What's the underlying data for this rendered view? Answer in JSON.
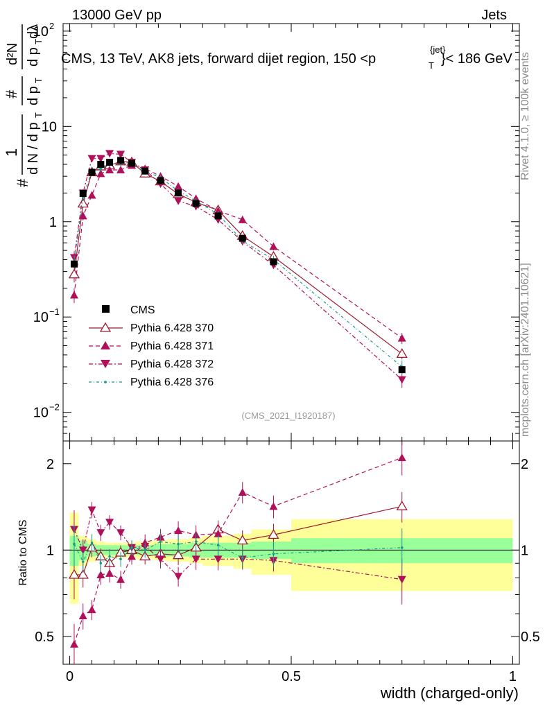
{
  "header": {
    "left": "13000 GeV pp",
    "right": "Jets"
  },
  "side": {
    "version": "Rivet 4.1.0, ≥ 100k events",
    "source": "mcplots.cern.ch [arXiv:2401.10621]"
  },
  "chart_data": {
    "type": "line",
    "title": "CMS, 13 TeV, AK8 jets, forward dijet region, 150 <",
    "title_p": "p",
    "title_sup": "{jet}",
    "title_sub": "T",
    "title_end": "}< 186 GeV",
    "analysis_label": "(CMS_2021_I1920187)",
    "xlabel": "width (charged-only)",
    "ylabel_ratio": "Ratio to CMS",
    "ylabel_main": {
      "hash": "#",
      "one": "1",
      "dN": "d N / d p",
      "dN_sub": "T",
      "hash2": "#",
      "dp": "d p",
      "dp_sub": "T",
      "d2N": "d²N",
      "dlambda": "dλ"
    },
    "xlim": [
      -0.015,
      1.015
    ],
    "ylim_main": [
      0.005,
      120
    ],
    "ylim_ratio": [
      0.4,
      2.4
    ],
    "x_ticks": [
      {
        "v": 0,
        "label": "0"
      },
      {
        "v": 0.5,
        "label": "0.5"
      },
      {
        "v": 1,
        "label": "1"
      }
    ],
    "y_ticks_main": [
      {
        "v": 0.01,
        "b": "10",
        "e": "−2"
      },
      {
        "v": 0.1,
        "b": "10",
        "e": "−1"
      },
      {
        "v": 1,
        "b": "1",
        "e": ""
      },
      {
        "v": 10,
        "b": "10",
        "e": ""
      },
      {
        "v": 100,
        "b": "10",
        "e": "2"
      }
    ],
    "y_ticks_ratio": [
      {
        "v": 0.5,
        "label": "0.5"
      },
      {
        "v": 1,
        "label": "1"
      },
      {
        "v": 2,
        "label": "2"
      }
    ],
    "x": [
      0.01,
      0.03,
      0.05,
      0.07,
      0.09,
      0.115,
      0.14,
      0.17,
      0.205,
      0.245,
      0.285,
      0.335,
      0.39,
      0.46,
      0.75
    ],
    "bin_edges": [
      0,
      0.02,
      0.04,
      0.06,
      0.08,
      0.1,
      0.13,
      0.15,
      0.19,
      0.22,
      0.27,
      0.3,
      0.37,
      0.41,
      0.5,
      1.0
    ],
    "band_inner": [
      0.12,
      0.08,
      0.05,
      0.04,
      0.04,
      0.04,
      0.04,
      0.04,
      0.05,
      0.05,
      0.06,
      0.06,
      0.06,
      0.07,
      0.1
    ],
    "band_outer": [
      0.35,
      0.12,
      0.09,
      0.07,
      0.06,
      0.06,
      0.06,
      0.07,
      0.08,
      0.09,
      0.1,
      0.12,
      0.14,
      0.18,
      0.28
    ],
    "cms": {
      "name": "CMS",
      "values": [
        0.36,
        1.98,
        3.3,
        4.0,
        4.2,
        4.4,
        4.1,
        3.4,
        2.7,
        2.0,
        1.55,
        1.15,
        0.67,
        0.38,
        0.028
      ],
      "color": "#000000"
    },
    "series": [
      {
        "name": "Pythia 6.428 370",
        "color": "#9b1b30",
        "marker": "open-triangle-up",
        "dash": "",
        "values": [
          0.28,
          1.55,
          3.3,
          3.8,
          3.9,
          4.3,
          4.2,
          3.2,
          2.65,
          1.95,
          1.6,
          1.32,
          0.71,
          0.43,
          0.041
        ],
        "err": [
          0.05,
          0.15,
          0.25,
          0.25,
          0.25,
          0.25,
          0.25,
          0.2,
          0.2,
          0.15,
          0.12,
          0.1,
          0.06,
          0.04,
          0.005
        ],
        "ratio": [
          0.82,
          0.82,
          1.02,
          0.95,
          0.9,
          0.98,
          1.0,
          0.95,
          0.97,
          0.96,
          1.02,
          1.18,
          1.08,
          1.13,
          1.42
        ]
      },
      {
        "name": "Pythia 6.428 371",
        "color": "#b0105a",
        "marker": "filled-triangle-up",
        "dash": "6,4",
        "values": [
          0.17,
          1.15,
          1.9,
          3.2,
          3.5,
          3.5,
          3.9,
          3.6,
          3.0,
          2.35,
          1.75,
          1.3,
          1.05,
          0.55,
          0.06
        ],
        "err": [
          0.03,
          0.12,
          0.15,
          0.25,
          0.25,
          0.25,
          0.25,
          0.25,
          0.2,
          0.18,
          0.14,
          0.1,
          0.09,
          0.05,
          0.008
        ],
        "ratio": [
          0.47,
          0.59,
          0.62,
          0.82,
          0.83,
          0.79,
          0.95,
          1.06,
          1.11,
          1.17,
          1.13,
          1.14,
          1.59,
          1.42,
          2.1
        ]
      },
      {
        "name": "Pythia 6.428 372",
        "color": "#b0105a",
        "marker": "filled-triangle-down",
        "dash": "6,3,2,3",
        "values": [
          0.42,
          2.0,
          4.6,
          4.6,
          5.2,
          5.1,
          4.2,
          3.5,
          2.5,
          1.65,
          1.45,
          1.05,
          0.62,
          0.35,
          0.022
        ],
        "err": [
          0.07,
          0.18,
          0.3,
          0.3,
          0.3,
          0.3,
          0.25,
          0.22,
          0.18,
          0.13,
          0.12,
          0.09,
          0.05,
          0.03,
          0.004
        ],
        "ratio": [
          1.18,
          1.0,
          1.38,
          1.15,
          1.25,
          1.15,
          1.02,
          1.03,
          0.93,
          0.81,
          0.93,
          0.93,
          0.93,
          0.92,
          0.79
        ]
      },
      {
        "name": "Pythia 6.428 376",
        "color": "#1a9a8a",
        "marker": "small-dot",
        "dash": "4,3,1,3",
        "values": [
          0.38,
          1.8,
          3.5,
          3.6,
          4.0,
          4.1,
          4.2,
          3.4,
          2.9,
          2.1,
          1.65,
          1.2,
          0.63,
          0.4,
          0.03
        ],
        "err": [
          0.06,
          0.15,
          0.25,
          0.25,
          0.25,
          0.25,
          0.25,
          0.2,
          0.2,
          0.15,
          0.12,
          0.1,
          0.05,
          0.04,
          0.005
        ],
        "ratio": [
          1.05,
          0.91,
          1.06,
          0.9,
          0.95,
          0.93,
          1.02,
          1.0,
          1.07,
          1.05,
          1.07,
          1.04,
          0.94,
          0.97,
          1.02
        ]
      }
    ]
  }
}
